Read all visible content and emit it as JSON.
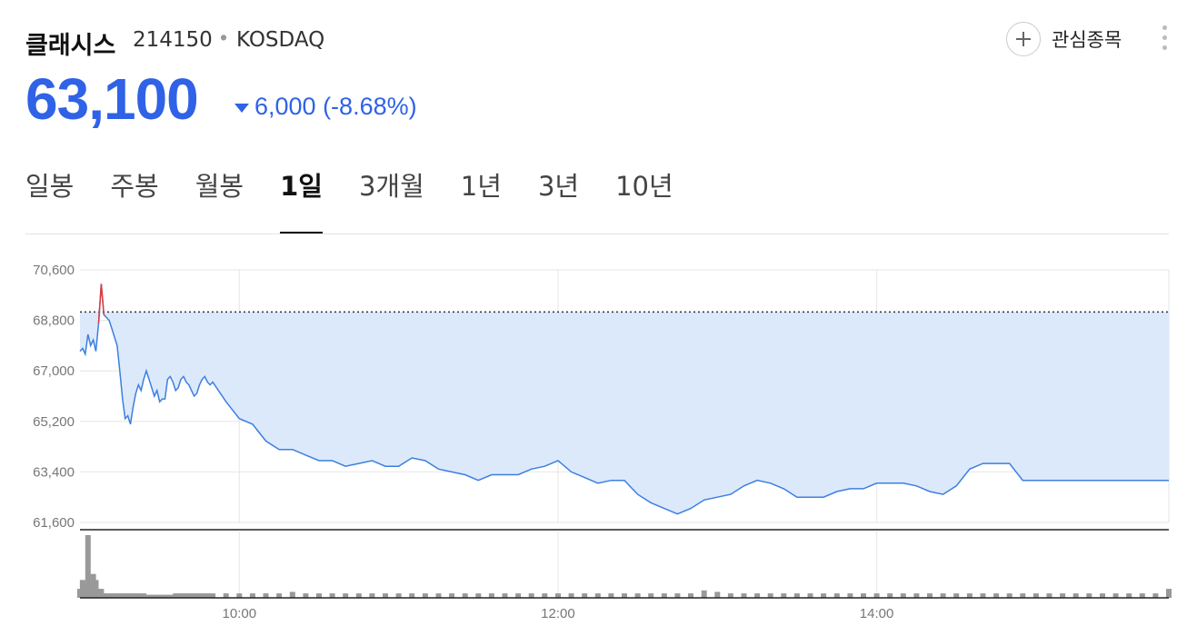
{
  "header": {
    "name": "클래시스",
    "code": "214150",
    "separator": "•",
    "market": "KOSDAQ",
    "favorite_label": "관심종목",
    "favorite_icon": "plus-icon",
    "more_icon": "more-vertical-icon"
  },
  "quote": {
    "price": "63,100",
    "change": "6,000 (-8.68%)",
    "direction": "down",
    "color": "#2f62e6"
  },
  "tabs": [
    {
      "label": "일봉",
      "active": false
    },
    {
      "label": "주봉",
      "active": false
    },
    {
      "label": "월봉",
      "active": false
    },
    {
      "label": "1일",
      "active": true
    },
    {
      "label": "3개월",
      "active": false
    },
    {
      "label": "1년",
      "active": false
    },
    {
      "label": "3년",
      "active": false
    },
    {
      "label": "10년",
      "active": false
    }
  ],
  "chart_data": {
    "type": "line",
    "y_tick_labels": [
      "70,600",
      "68,800",
      "67,000",
      "65,200",
      "63,400",
      "61,600"
    ],
    "y_ticks": [
      70600,
      68800,
      67000,
      65200,
      63400,
      61600
    ],
    "ylim": [
      61600,
      70600
    ],
    "x_tick_labels": [
      "10:00",
      "12:00",
      "14:00"
    ],
    "x_ticks_minutes": [
      600,
      720,
      840
    ],
    "xlim_minutes": [
      540,
      950
    ],
    "reference_price": 69100,
    "colors": {
      "line": "#3d7fe0",
      "fill": "#dbe9fa",
      "up": "#e03a3a",
      "volume": "#999999"
    },
    "grid": true,
    "series": [
      {
        "x": [
          540,
          541,
          542,
          543,
          544,
          545,
          546,
          547,
          548,
          549,
          550,
          551,
          552,
          553,
          554,
          555,
          556,
          557,
          558,
          559,
          560,
          561,
          562,
          563,
          564,
          565,
          566,
          567,
          568,
          569,
          570,
          571,
          572,
          573,
          574,
          575,
          576,
          577,
          578,
          579,
          580,
          581,
          582,
          583,
          584,
          585,
          586,
          587,
          588,
          589,
          590,
          595,
          600,
          605,
          610,
          615,
          620,
          625,
          630,
          635,
          640,
          645,
          650,
          655,
          660,
          665,
          670,
          675,
          680,
          685,
          690,
          695,
          700,
          705,
          710,
          715,
          720,
          725,
          730,
          735,
          740,
          745,
          750,
          755,
          760,
          765,
          770,
          775,
          780,
          785,
          790,
          795,
          800,
          805,
          810,
          815,
          820,
          825,
          830,
          835,
          840,
          845,
          850,
          855,
          860,
          865,
          870,
          875,
          880,
          885,
          890,
          895,
          900,
          905,
          910,
          915,
          920,
          925,
          930,
          935,
          940,
          945,
          950
        ],
        "values": [
          67700,
          67800,
          67600,
          68300,
          67900,
          68100,
          67700,
          68700,
          70100,
          69000,
          68900,
          68800,
          68500,
          68200,
          67900,
          67000,
          66000,
          65300,
          65400,
          65100,
          65700,
          66200,
          66500,
          66300,
          66700,
          67000,
          66700,
          66400,
          66100,
          66300,
          65900,
          66000,
          66000,
          66700,
          66800,
          66600,
          66300,
          66400,
          66700,
          66800,
          66600,
          66500,
          66300,
          66100,
          66200,
          66500,
          66700,
          66800,
          66600,
          66500,
          66600,
          65900,
          65300,
          65100,
          64500,
          64200,
          64200,
          64000,
          63800,
          63800,
          63600,
          63700,
          63800,
          63600,
          63600,
          63900,
          63800,
          63500,
          63400,
          63300,
          63100,
          63300,
          63300,
          63300,
          63500,
          63600,
          63800,
          63400,
          63200,
          63000,
          63100,
          63100,
          62600,
          62300,
          62100,
          61900,
          62100,
          62400,
          62500,
          62600,
          62900,
          63100,
          63000,
          62800,
          62500,
          62500,
          62500,
          62700,
          62800,
          62800,
          63000,
          63000,
          63000,
          62900,
          62700,
          62600,
          62900,
          63500,
          63700,
          63700,
          63700,
          63100,
          63100,
          63100,
          63100,
          63100,
          63100,
          63100,
          63100,
          63100,
          63100,
          63100,
          63100
        ],
        "volumes": [
          6,
          12,
          9,
          42,
          8,
          16,
          12,
          6,
          6,
          3,
          3,
          3,
          3,
          3,
          3,
          3,
          3,
          3,
          3,
          3,
          3,
          3,
          3,
          3,
          3,
          2,
          2,
          2,
          2,
          2,
          2,
          2,
          2,
          2,
          2,
          2,
          3,
          3,
          3,
          3,
          3,
          3,
          3,
          3,
          3,
          3,
          3,
          3,
          3,
          3,
          3,
          3,
          3,
          3,
          3,
          3,
          4,
          3,
          3,
          3,
          3,
          3,
          3,
          3,
          3,
          3,
          3,
          3,
          3,
          3,
          3,
          3,
          3,
          3,
          3,
          3,
          3,
          3,
          3,
          3,
          3,
          3,
          3,
          3,
          3,
          3,
          3,
          5,
          4,
          3,
          3,
          3,
          3,
          3,
          3,
          3,
          3,
          3,
          3,
          3,
          3,
          3,
          3,
          3,
          3,
          3,
          3,
          3,
          3,
          3,
          3,
          3,
          3,
          3,
          3,
          3,
          3,
          3,
          3,
          3,
          3,
          3,
          6
        ]
      }
    ]
  }
}
